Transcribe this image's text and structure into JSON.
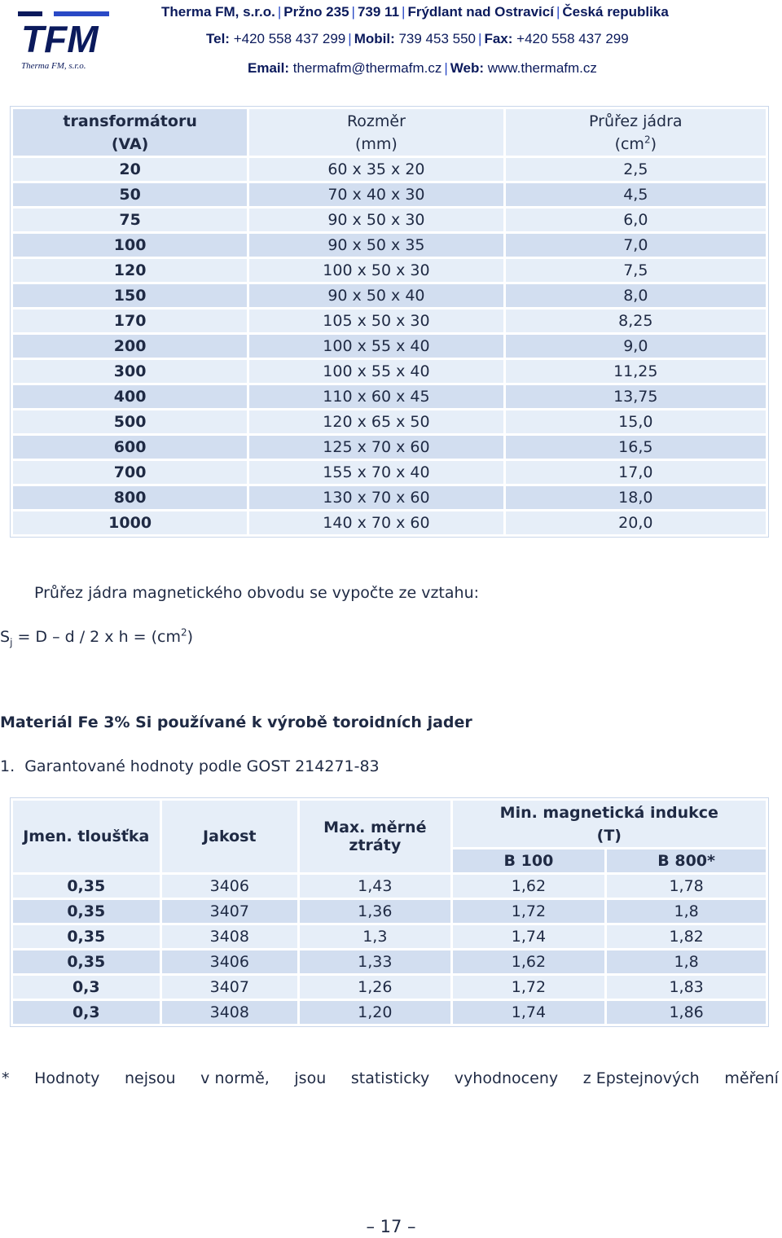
{
  "header": {
    "company": "Therma FM, s.r.o.",
    "street": "Pržno 235",
    "zip": "739 11",
    "city": "Frýdlant nad Ostravicí",
    "country": "Česká republika",
    "tel_label": "Tel:",
    "tel": "+420 558 437 299",
    "mobil_label": "Mobil:",
    "mobil": "739 453 550",
    "fax_label": "Fax:",
    "fax": "+420 558 437 299",
    "email_label": "Email:",
    "email": "thermafm@thermafm.cz",
    "web_label": "Web:",
    "web": "www.thermafm.cz",
    "logo_text": "TFM",
    "logo_subtext": "Therma FM, s.r.o.",
    "brand_color": "#0b1a5c"
  },
  "transformer_table": {
    "headers": {
      "col1_line1": "transformátoru",
      "col1_line2": "(VA)",
      "col2_line1": "Rozměr",
      "col2_line2": "(mm)",
      "col3_line1": "Průřez jádra",
      "col3_line2_pre": "(cm",
      "col3_line2_sup": "2",
      "col3_line2_post": ")"
    },
    "rows": [
      {
        "power": "20",
        "size": "60 x 35 x 20",
        "core": "2,5"
      },
      {
        "power": "50",
        "size": "70 x 40 x 30",
        "core": "4,5"
      },
      {
        "power": "75",
        "size": "90 x 50 x 30",
        "core": "6,0"
      },
      {
        "power": "100",
        "size": "90 x 50 x 35",
        "core": "7,0"
      },
      {
        "power": "120",
        "size": "100 x 50 x 30",
        "core": "7,5"
      },
      {
        "power": "150",
        "size": "90 x 50 x 40",
        "core": "8,0"
      },
      {
        "power": "170",
        "size": "105 x 50 x 30",
        "core": "8,25"
      },
      {
        "power": "200",
        "size": "100 x 55 x 40",
        "core": "9,0"
      },
      {
        "power": "300",
        "size": "100 x 55 x 40",
        "core": "11,25"
      },
      {
        "power": "400",
        "size": "110 x 60 x 45",
        "core": "13,75"
      },
      {
        "power": "500",
        "size": "120 x 65 x 50",
        "core": "15,0"
      },
      {
        "power": "600",
        "size": "125 x 70 x 60",
        "core": "16,5"
      },
      {
        "power": "700",
        "size": "155 x 70 x 40",
        "core": "17,0"
      },
      {
        "power": "800",
        "size": "130 x 70 x 60",
        "core": "18,0"
      },
      {
        "power": "1000",
        "size": "140 x 70 x 60",
        "core": "20,0"
      }
    ]
  },
  "formula": {
    "intro": "Průřez jádra magnetického obvodu se vypočte ze vztahu:",
    "s": "S",
    "sub": "j",
    "body": " = D – d / 2 x h = (cm",
    "sup": "2",
    "close": ")"
  },
  "material": {
    "heading": "Materiál Fe 3% Si používané k výrobě toroidních jader",
    "list_item": "1.  Garantované hodnoty podle GOST 214271-83"
  },
  "material_table": {
    "headers": {
      "thickness": "Jmen. tloušťka",
      "grade": "Jakost",
      "loss_line1": "Max. měrné",
      "loss_line2": "ztráty",
      "induction_line1": "Min. magnetická indukce",
      "induction_line2": "(T)",
      "b100": "B 100",
      "b800": "B 800*"
    },
    "rows": [
      {
        "thickness": "0,35",
        "grade": "3406",
        "loss": "1,43",
        "b100": "1,62",
        "b800": "1,78"
      },
      {
        "thickness": "0,35",
        "grade": "3407",
        "loss": "1,36",
        "b100": "1,72",
        "b800": "1,8"
      },
      {
        "thickness": "0,35",
        "grade": "3408",
        "loss": "1,3",
        "b100": "1,74",
        "b800": "1,82"
      },
      {
        "thickness": "0,35",
        "grade": "3406",
        "loss": "1,33",
        "b100": "1,62",
        "b800": "1,8"
      },
      {
        "thickness": "0,3",
        "grade": "3407",
        "loss": "1,26",
        "b100": "1,72",
        "b800": "1,83"
      },
      {
        "thickness": "0,3",
        "grade": "3408",
        "loss": "1,20",
        "b100": "1,74",
        "b800": "1,86"
      }
    ]
  },
  "footnote": [
    "*",
    "Hodnoty",
    "nejsou",
    "v normě,",
    "jsou",
    "statisticky",
    "vyhodnoceny",
    "z Epstejnových",
    "měření"
  ],
  "page_number": "– 17 –"
}
